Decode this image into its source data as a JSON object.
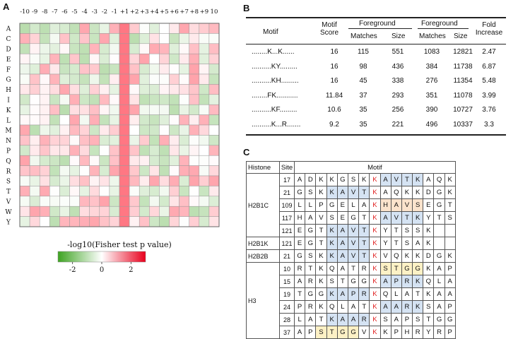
{
  "panelA": {
    "letter": "A",
    "positions": [
      "-10",
      "-9",
      "-8",
      "-7",
      "-6",
      "-5",
      "-4",
      "-3",
      "-2",
      "-1",
      "+1",
      "+2",
      "+3",
      "+4",
      "+5",
      "+6",
      "+7",
      "+8",
      "+9",
      "10"
    ],
    "amino_acids": [
      "A",
      "C",
      "D",
      "E",
      "F",
      "G",
      "H",
      "I",
      "K",
      "L",
      "M",
      "N",
      "P",
      "Q",
      "R",
      "S",
      "T",
      "V",
      "W",
      "Y"
    ],
    "colorbar_title": "-log10(Fisher test p value)",
    "colorbar_ticks": [
      "-2",
      "0",
      "2"
    ],
    "colors": {
      "positive": "#e8001c",
      "negative": "#3da321",
      "neutral": "#ffffff"
    }
  },
  "panelB": {
    "letter": "B",
    "headers": {
      "motif": "Motif",
      "motif_score": "Motif Score",
      "foreground": "Foreground",
      "background": "Foreground",
      "matches": "Matches",
      "size": "Size",
      "bg_matches": "Matches",
      "bg_size": "Size",
      "fold_increase": "Fold Increase"
    },
    "rows": [
      {
        "motif": "........K...K......",
        "score": "16",
        "fg_matches": "115",
        "fg_size": "551",
        "bg_matches": "1083",
        "bg_size": "12821",
        "fold": "2.47"
      },
      {
        "motif": "..........KY.........",
        "score": "16",
        "fg_matches": "98",
        "fg_size": "436",
        "bg_matches": "384",
        "bg_size": "11738",
        "fold": "6.87"
      },
      {
        "motif": "..........KH.........",
        "score": "16",
        "fg_matches": "45",
        "fg_size": "338",
        "bg_matches": "276",
        "bg_size": "11354",
        "fold": "5.48"
      },
      {
        "motif": "........FK...........",
        "score": "11.84",
        "fg_matches": "37",
        "fg_size": "293",
        "bg_matches": "351",
        "bg_size": "11078",
        "fold": "3.99"
      },
      {
        "motif": "..........KF.........",
        "score": "10.6",
        "fg_matches": "35",
        "fg_size": "256",
        "bg_matches": "390",
        "bg_size": "10727",
        "fold": "3.76"
      },
      {
        "motif": "..........K...R.......",
        "score": "9.2",
        "fg_matches": "35",
        "fg_size": "221",
        "bg_matches": "496",
        "bg_size": "10337",
        "fold": "3.3"
      }
    ]
  },
  "panelC": {
    "letter": "C",
    "headers": {
      "histone": "Histone",
      "site": "Site",
      "motif": "Motif"
    },
    "groups": [
      {
        "histone": "H2B1C",
        "rows": [
          {
            "site": "17",
            "seq": [
              "A",
              "D",
              "K",
              "K",
              "G",
              "S",
              "K",
              "K",
              "A",
              "V",
              "T",
              "K",
              "A",
              "Q",
              "K"
            ],
            "hl": [
              "",
              "",
              "",
              "",
              "",
              "",
              "",
              "",
              "b",
              "b",
              "b",
              "b",
              "",
              "",
              ""
            ]
          },
          {
            "site": "21",
            "seq": [
              "G",
              "S",
              "K",
              "K",
              "A",
              "V",
              "T",
              "K",
              "A",
              "Q",
              "K",
              "K",
              "D",
              "G",
              "K"
            ],
            "hl": [
              "",
              "",
              "",
              "b",
              "b",
              "b",
              "b",
              "",
              "",
              "",
              "",
              "",
              "",
              "",
              ""
            ]
          },
          {
            "site": "109",
            "seq": [
              "L",
              "L",
              "P",
              "G",
              "E",
              "L",
              "A",
              "K",
              "H",
              "A",
              "V",
              "S",
              "E",
              "G",
              "T"
            ],
            "hl": [
              "",
              "",
              "",
              "",
              "",
              "",
              "",
              "",
              "o",
              "o",
              "o",
              "o",
              "",
              "",
              ""
            ]
          },
          {
            "site": "117",
            "seq": [
              "H",
              "A",
              "V",
              "S",
              "E",
              "G",
              "T",
              "K",
              "A",
              "V",
              "T",
              "K",
              "Y",
              "T",
              "S"
            ],
            "hl": [
              "",
              "",
              "",
              "",
              "",
              "",
              "",
              "",
              "b",
              "b",
              "b",
              "b",
              "",
              "",
              ""
            ]
          },
          {
            "site": "121",
            "seq": [
              "E",
              "G",
              "T",
              "K",
              "A",
              "V",
              "T",
              "K",
              "Y",
              "T",
              "S",
              "S",
              "K",
              "",
              ""
            ],
            "hl": [
              "",
              "",
              "",
              "b",
              "b",
              "b",
              "b",
              "",
              "",
              "",
              "",
              "",
              "",
              "",
              ""
            ]
          }
        ]
      },
      {
        "histone": "H2B1K",
        "rows": [
          {
            "site": "121",
            "seq": [
              "E",
              "G",
              "T",
              "K",
              "A",
              "V",
              "T",
              "K",
              "Y",
              "T",
              "S",
              "A",
              "K",
              "",
              ""
            ],
            "hl": [
              "",
              "",
              "",
              "b",
              "b",
              "b",
              "b",
              "",
              "",
              "",
              "",
              "",
              "",
              "",
              ""
            ]
          }
        ]
      },
      {
        "histone": "H2B2B",
        "rows": [
          {
            "site": "21",
            "seq": [
              "G",
              "S",
              "K",
              "K",
              "A",
              "V",
              "T",
              "K",
              "V",
              "Q",
              "K",
              "K",
              "D",
              "G",
              "K"
            ],
            "hl": [
              "",
              "",
              "",
              "b",
              "b",
              "b",
              "b",
              "",
              "",
              "",
              "",
              "",
              "",
              "",
              ""
            ]
          }
        ]
      },
      {
        "histone": "H3",
        "rows": [
          {
            "site": "10",
            "seq": [
              "R",
              "T",
              "K",
              "Q",
              "A",
              "T",
              "R",
              "K",
              "S",
              "T",
              "G",
              "G",
              "K",
              "A",
              "P"
            ],
            "hl": [
              "",
              "",
              "",
              "",
              "",
              "",
              "",
              "",
              "y",
              "y",
              "y",
              "y",
              "",
              "",
              ""
            ]
          },
          {
            "site": "15",
            "seq": [
              "A",
              "R",
              "K",
              "S",
              "T",
              "G",
              "G",
              "K",
              "A",
              "P",
              "R",
              "K",
              "Q",
              "L",
              "A"
            ],
            "hl": [
              "",
              "",
              "",
              "",
              "",
              "",
              "",
              "",
              "b",
              "b",
              "b",
              "b",
              "",
              "",
              ""
            ]
          },
          {
            "site": "19",
            "seq": [
              "T",
              "G",
              "G",
              "K",
              "A",
              "P",
              "R",
              "K",
              "Q",
              "L",
              "A",
              "T",
              "K",
              "A",
              "A"
            ],
            "hl": [
              "",
              "",
              "",
              "b",
              "b",
              "b",
              "b",
              "",
              "",
              "",
              "",
              "",
              "",
              "",
              ""
            ]
          },
          {
            "site": "24",
            "seq": [
              "P",
              "R",
              "K",
              "Q",
              "L",
              "A",
              "T",
              "K",
              "A",
              "A",
              "R",
              "K",
              "S",
              "A",
              "P"
            ],
            "hl": [
              "",
              "",
              "",
              "",
              "",
              "",
              "",
              "",
              "b",
              "b",
              "b",
              "b",
              "",
              "",
              ""
            ]
          },
          {
            "site": "28",
            "seq": [
              "L",
              "A",
              "T",
              "K",
              "A",
              "A",
              "R",
              "K",
              "S",
              "A",
              "P",
              "S",
              "T",
              "G",
              "G"
            ],
            "hl": [
              "",
              "",
              "",
              "b",
              "b",
              "b",
              "b",
              "",
              "",
              "",
              "",
              "",
              "",
              "",
              ""
            ]
          },
          {
            "site": "37",
            "seq": [
              "A",
              "P",
              "S",
              "T",
              "G",
              "G",
              "V",
              "K",
              "K",
              "P",
              "H",
              "R",
              "Y",
              "R",
              "P"
            ],
            "hl": [
              "",
              "",
              "y",
              "y",
              "y",
              "y",
              "",
              "",
              "",
              "",
              "",
              "",
              "",
              "",
              ""
            ]
          }
        ]
      }
    ]
  }
}
